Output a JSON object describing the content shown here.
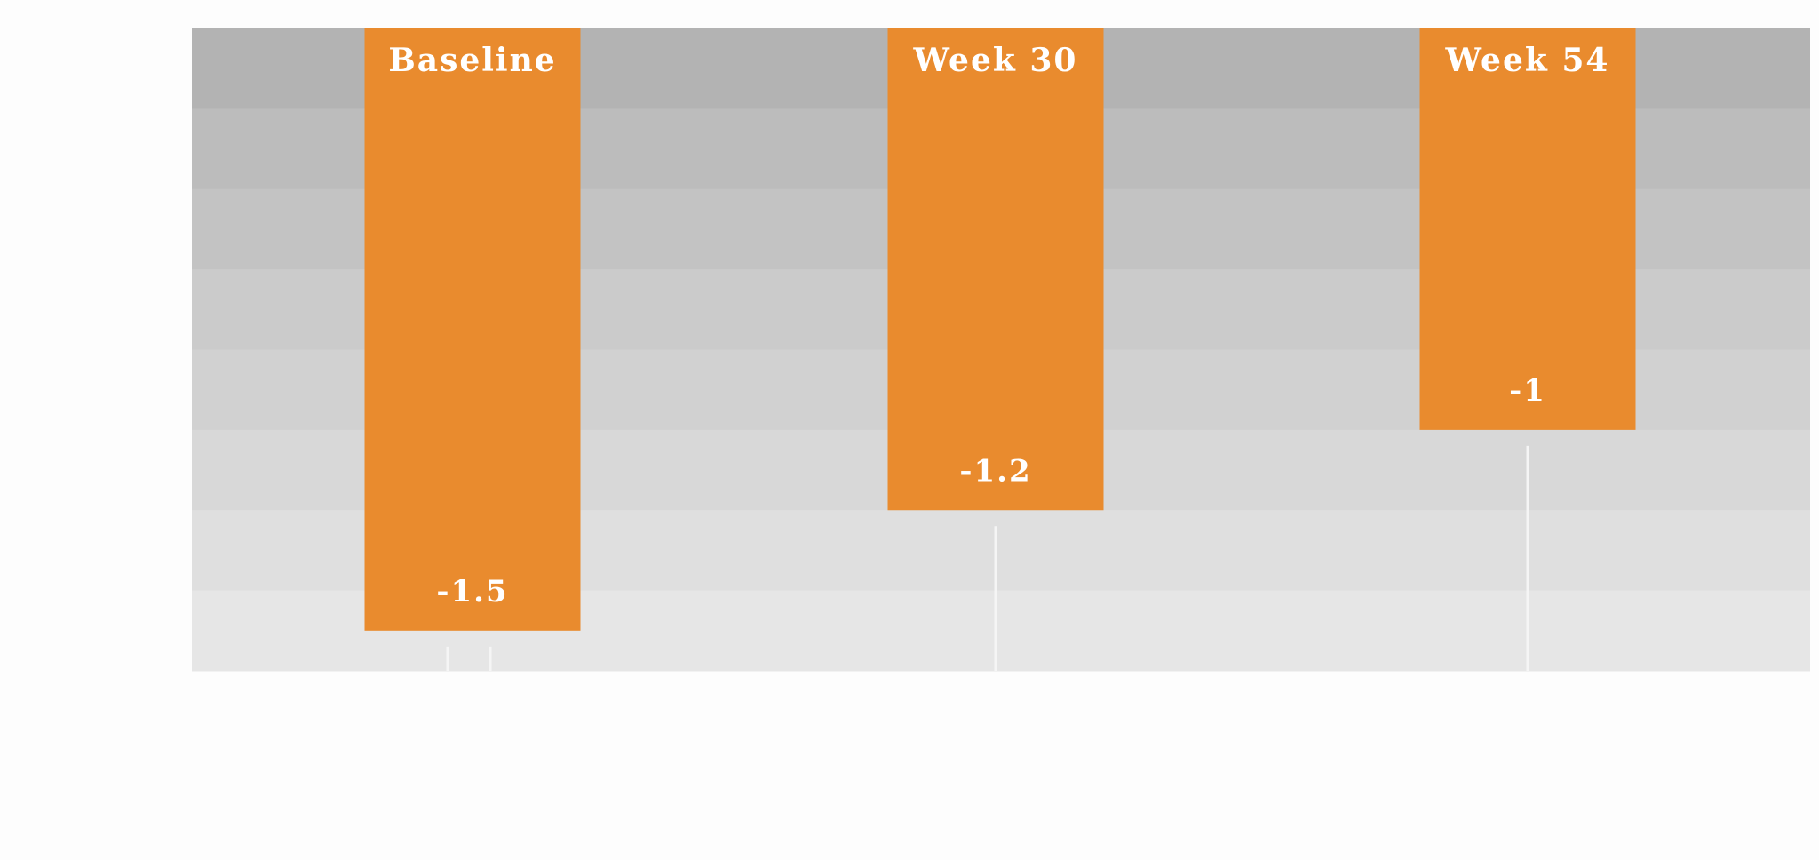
{
  "chart_data": {
    "type": "bar",
    "title": "",
    "xlabel": "",
    "ylabel": "",
    "categories": [
      "Baseline",
      "Week 30",
      "Week 54"
    ],
    "values": [
      -1.5,
      -1.2,
      -1
    ],
    "value_labels": [
      "-1.5",
      "-1.2",
      "-1"
    ],
    "ylim": [
      -1.6,
      0
    ],
    "bar_color": "#e98b2e",
    "band_colors": [
      "#b3b3b3",
      "#bcbcbc",
      "#c3c3c3",
      "#cbcbcb",
      "#d1d1d1",
      "#d8d8d8",
      "#dfdfdf",
      "#e6e6e6"
    ],
    "grid": false,
    "legend": "none"
  }
}
